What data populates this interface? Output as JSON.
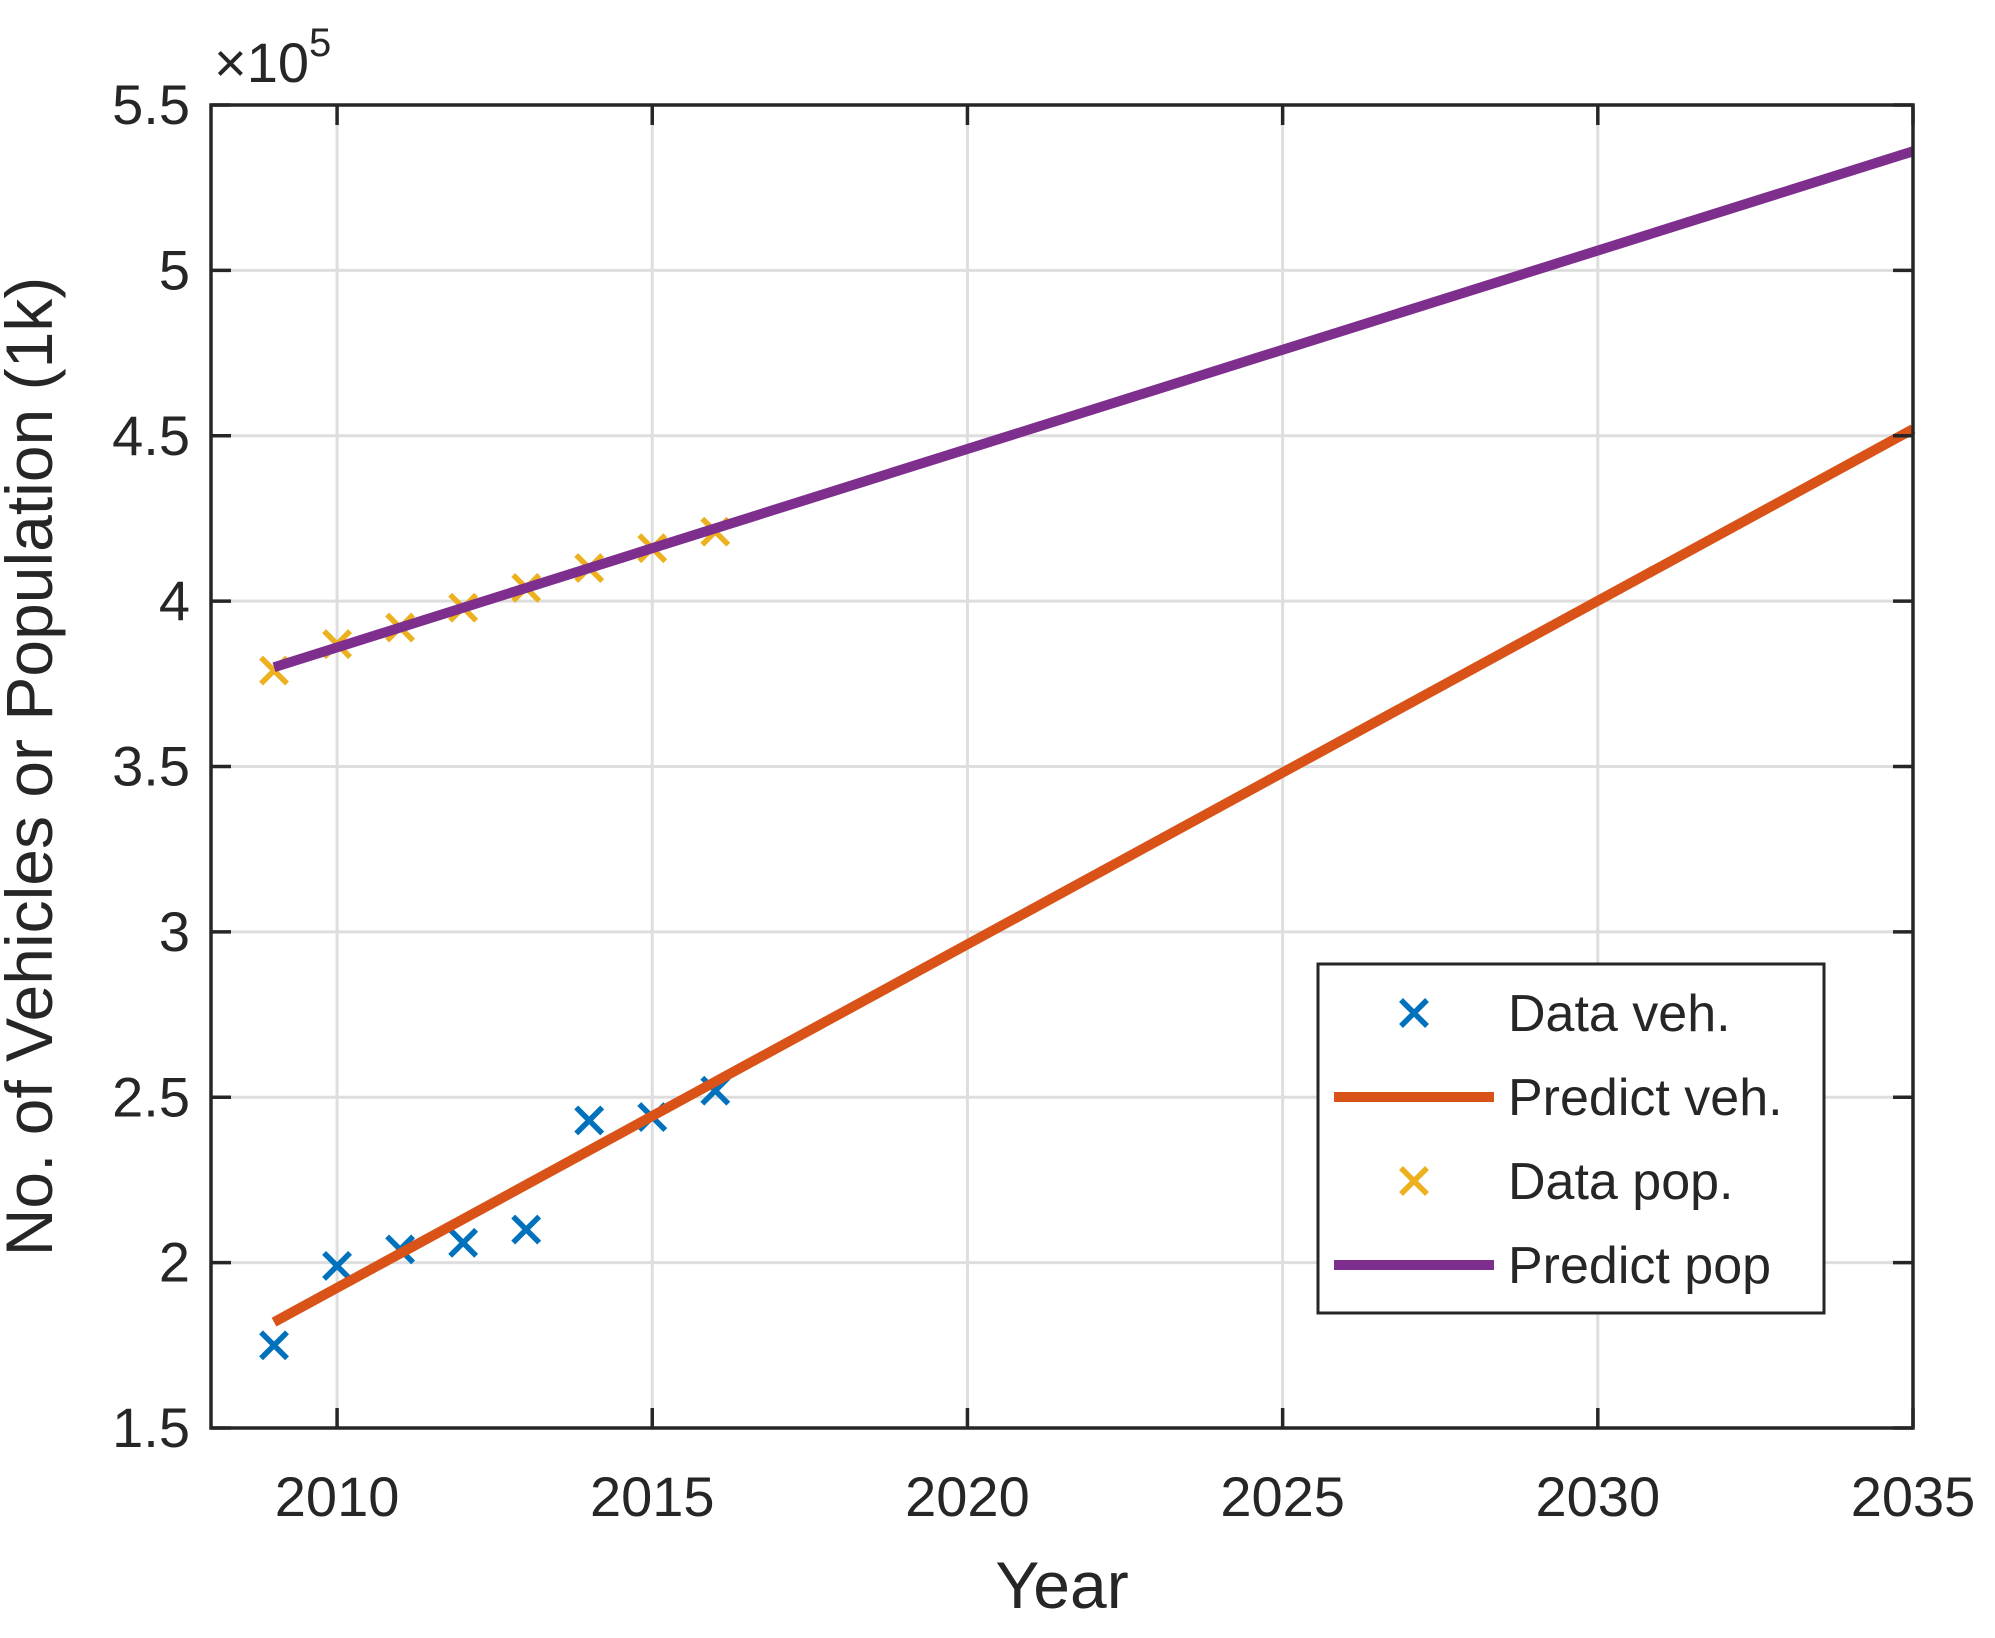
{
  "chart_data": {
    "type": "scatter+line",
    "title": "",
    "xlabel": "Year",
    "ylabel": "No. of Vehicles or Population (1k)",
    "y_axis_multiplier": {
      "base": "×10",
      "exponent": "5"
    },
    "xlim": [
      2008,
      2035
    ],
    "ylim": [
      1.5,
      5.5
    ],
    "x_ticks": {
      "values": [
        2010,
        2015,
        2020,
        2025,
        2030,
        2035
      ],
      "labels": [
        "2010",
        "2015",
        "2020",
        "2025",
        "2030",
        "2035"
      ]
    },
    "y_ticks": {
      "values": [
        1.5,
        2,
        2.5,
        3,
        3.5,
        4,
        4.5,
        5,
        5.5
      ],
      "labels": [
        "1.5",
        "2",
        "2.5",
        "3",
        "3.5",
        "4",
        "4.5",
        "5",
        "5.5"
      ]
    },
    "grid": true,
    "series": [
      {
        "name": "Data veh.",
        "type": "scatter",
        "marker": "x",
        "color": "#0072BD",
        "x": [
          2009,
          2010,
          2011,
          2012,
          2013,
          2014,
          2015,
          2016
        ],
        "y": [
          1.75,
          1.99,
          2.04,
          2.06,
          2.1,
          2.43,
          2.44,
          2.52
        ]
      },
      {
        "name": "Predict veh.",
        "type": "line",
        "color": "#D95319",
        "x": [
          2009,
          2035
        ],
        "y": [
          1.82,
          4.52
        ]
      },
      {
        "name": "Data pop.",
        "type": "scatter",
        "marker": "x",
        "color": "#EDB120",
        "x": [
          2009,
          2010,
          2011,
          2012,
          2013,
          2014,
          2015,
          2016
        ],
        "y": [
          3.79,
          3.87,
          3.92,
          3.98,
          4.04,
          4.1,
          4.16,
          4.21
        ]
      },
      {
        "name": "Predict pop",
        "type": "line",
        "color": "#7E2F8E",
        "x": [
          2009,
          2035
        ],
        "y": [
          3.8,
          5.36
        ]
      }
    ],
    "legend": {
      "position": "inside lower-right",
      "entries": [
        "Data veh.",
        "Predict veh.",
        "Data pop.",
        "Predict pop"
      ]
    }
  },
  "colors": {
    "background": "#FFFFFF",
    "axis": "#262626",
    "grid": "#DEDEDE",
    "text": "#262626",
    "legend_background": "#FFFFFF",
    "legend_border": "#262626"
  }
}
